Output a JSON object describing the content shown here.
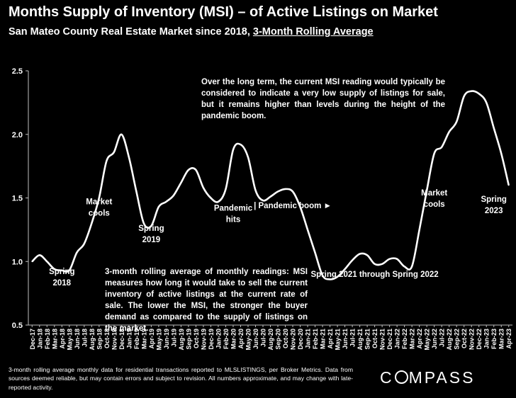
{
  "header": {
    "title": "Months Supply of Inventory (MSI) – of Active Listings on Market",
    "subtitle_prefix": "San Mateo County Real Estate Market since 2018, ",
    "subtitle_underlined": "3-Month Rolling Average"
  },
  "notes": {
    "top_right": "Over the long term, the current MSI reading would typically be considered to indicate a very low supply of listings for sale, but it remains higher than levels during the height of the pandemic boom.",
    "middle": "3-month rolling average of monthly readings: MSI measures how long it would take to sell the current inventory of active listings at the current rate of sale. The lower the MSI, the stronger the buyer demand as compared to the supply of listings on the market."
  },
  "footer": {
    "text": "3-month rolling average monthly data for residential transactions reported to MLSLISTINGS, per Broker Metrics. Data from sources deemed reliable, but may contain errors and subject to revision. All numbers approximate, and may change with late-reported activity."
  },
  "logo": {
    "left": "C",
    "right": "MPASS"
  },
  "chart_data": {
    "type": "line",
    "title": "Months Supply of Inventory (MSI) – of Active Listings on Market",
    "subtitle": "San Mateo County Real Estate Market since 2018, 3-Month Rolling Average",
    "xlabel": "",
    "ylabel": "",
    "ylim": [
      0.5,
      2.5
    ],
    "yticks": [
      "0.5",
      "1.0",
      "1.5",
      "2.0",
      "2.5"
    ],
    "grid": false,
    "legend": "none",
    "line_color": "#ffffff",
    "categories": [
      "Dec-17",
      "Jan-18",
      "Feb-18",
      "Mar-18",
      "Apr-18",
      "May-18",
      "Jun-18",
      "Jul-18",
      "Aug-18",
      "Sep-18",
      "Oct-18",
      "Nov-18",
      "Dec-18",
      "Jan-19",
      "Feb-19",
      "Mar-19",
      "Apr-19",
      "May-19",
      "Jun-19",
      "Jul-19",
      "Aug-19",
      "Sep-19",
      "Oct-19",
      "Nov-19",
      "Dec-19",
      "Jan-20",
      "Feb-20",
      "Mar-20",
      "Apr-20",
      "May-20",
      "Jun-20",
      "Jul-20",
      "Aug-20",
      "Sep-20",
      "Oct-20",
      "Nov-20",
      "Dec-20",
      "Jan-21",
      "Feb-21",
      "Mar-21",
      "Apr-21",
      "May-21",
      "Jun-21",
      "Jul-21",
      "Aug-21",
      "Sep-21",
      "Oct-21",
      "Nov-21",
      "Dec-21",
      "Jan-22",
      "Feb-22",
      "Mar-22",
      "Apr-22",
      "May-22",
      "Jun-22",
      "Jul-22",
      "Aug-22",
      "Sep-22",
      "Oct-22",
      "Nov-22",
      "Dec-22",
      "Jan-23",
      "Feb-23",
      "Mar-23",
      "Apr-23"
    ],
    "values": [
      1.0,
      1.05,
      1.0,
      0.94,
      0.93,
      0.93,
      1.07,
      1.14,
      1.3,
      1.5,
      1.79,
      1.86,
      2.0,
      1.82,
      1.55,
      1.3,
      1.28,
      1.43,
      1.47,
      1.52,
      1.62,
      1.72,
      1.72,
      1.58,
      1.5,
      1.47,
      1.57,
      1.88,
      1.92,
      1.82,
      1.56,
      1.48,
      1.51,
      1.55,
      1.57,
      1.55,
      1.43,
      1.25,
      1.07,
      0.89,
      0.86,
      0.88,
      0.94,
      1.01,
      1.06,
      1.05,
      0.98,
      0.98,
      1.02,
      1.02,
      0.96,
      0.96,
      1.25,
      1.56,
      1.85,
      1.9,
      2.02,
      2.1,
      2.3,
      2.34,
      2.32,
      2.25,
      2.05,
      1.85,
      1.6
    ],
    "annotations": [
      {
        "text": [
          "Spring",
          "2018"
        ],
        "x": "Apr-18",
        "y": 0.9
      },
      {
        "text": [
          "Market",
          "cools"
        ],
        "x": "Sep-18",
        "y": 1.45
      },
      {
        "text": [
          "Spring",
          "2019"
        ],
        "x": "Apr-19",
        "y": 1.24
      },
      {
        "text": [
          "Pandemic",
          "hits"
        ],
        "x": "Mar-20",
        "y": 1.4
      },
      {
        "text": [
          "| Pandemic boom ►"
        ],
        "x": "Nov-20",
        "y": 1.42
      },
      {
        "text": [
          "Spring 2021 through Spring 2022"
        ],
        "x": "Oct-21",
        "y": 0.88
      },
      {
        "text": [
          "Market",
          "cools"
        ],
        "x": "Jun-22",
        "y": 1.52
      },
      {
        "text": [
          "Spring",
          "2023"
        ],
        "x": "Feb-23",
        "y": 1.47
      }
    ]
  }
}
